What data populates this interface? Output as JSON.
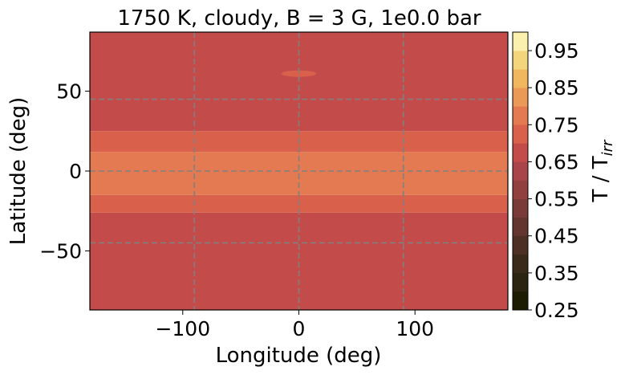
{
  "chart_data": {
    "type": "heatmap",
    "title": "1750 K, cloudy, B = 3 G, 1e0.0 bar",
    "xlabel": "Longitude (deg)",
    "ylabel": "Latitude (deg)",
    "colorbar_label": "T / T",
    "colorbar_label_sub": "irr",
    "xlim": [
      -180,
      180
    ],
    "ylim": [
      -87,
      87
    ],
    "x_ticks": [
      -100,
      0,
      100
    ],
    "x_tick_labels": [
      "−100",
      "0",
      "100"
    ],
    "y_ticks": [
      50,
      0,
      -50
    ],
    "y_tick_labels": [
      "50",
      "0",
      "−50"
    ],
    "gridlines_x": [
      -90,
      0,
      90
    ],
    "gridlines_y": [
      -45,
      0,
      45
    ],
    "grid_color": "#808080",
    "colorbar_levels": [
      0.25,
      0.3,
      0.35,
      0.4,
      0.45,
      0.5,
      0.55,
      0.6,
      0.65,
      0.7,
      0.75,
      0.8,
      0.85,
      0.9,
      0.95,
      1.0
    ],
    "colorbar_colors": [
      "#1c1c02",
      "#2a2410",
      "#3a2a1a",
      "#4d2f24",
      "#63352e",
      "#7a3b38",
      "#913f3f",
      "#a8444a",
      "#c34c4a",
      "#d9614b",
      "#e47a52",
      "#eb9957",
      "#f0b75f",
      "#f5d57c",
      "#fbf0ad"
    ],
    "colorbar_ticks": [
      0.25,
      0.35,
      0.45,
      0.55,
      0.65,
      0.75,
      0.85,
      0.95
    ],
    "colorbar_tick_labels": [
      "0.25",
      "0.35",
      "0.45",
      "0.55",
      "0.65",
      "0.75",
      "0.85",
      "0.95"
    ],
    "bands": [
      {
        "lat_min": -87,
        "lat_max": -26,
        "value": 0.625,
        "color": "#c34c4a"
      },
      {
        "lat_min": -26,
        "lat_max": -15,
        "value": 0.675,
        "color": "#d9614b"
      },
      {
        "lat_min": -15,
        "lat_max": 12,
        "value": 0.725,
        "color": "#e47a52"
      },
      {
        "lat_min": 12,
        "lat_max": 25,
        "value": 0.675,
        "color": "#d9614b"
      },
      {
        "lat_min": 25,
        "lat_max": 87,
        "value": 0.625,
        "color": "#c34c4a"
      }
    ],
    "feature": {
      "lon_center": 0,
      "lat_center": 61,
      "lon_halfwidth": 15,
      "lat_halfwidth": 2,
      "color": "#d9614b"
    }
  }
}
